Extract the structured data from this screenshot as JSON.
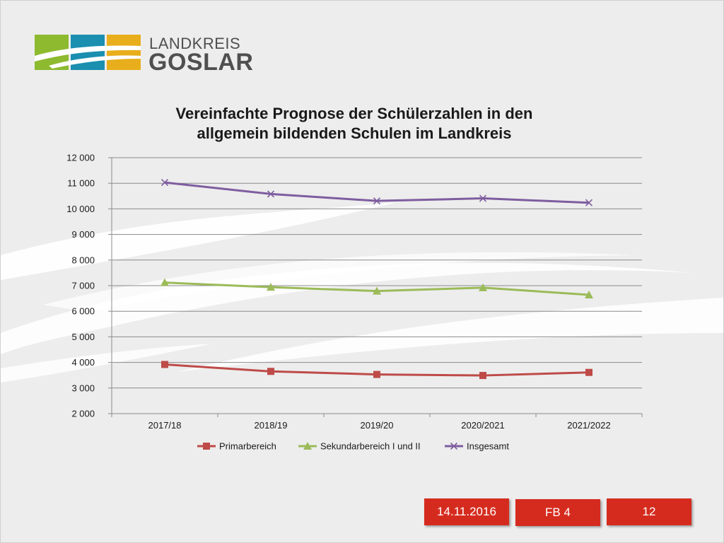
{
  "logo": {
    "line1": "LANDKREIS",
    "line2": "GOSLAR",
    "tile_colors": [
      "#8dba2f",
      "#1a8fb0",
      "#e8ae1c"
    ]
  },
  "chart_data": {
    "type": "line",
    "title": "Vereinfachte Prognose der Schülerzahlen in den allgemein bildenden Schulen im Landkreis",
    "title_lines": [
      "Vereinfachte Prognose der Schülerzahlen in den",
      "allgemein bildenden Schulen im Landkreis"
    ],
    "categories": [
      "2017/18",
      "2018/19",
      "2019/20",
      "2020/2021",
      "2021/2022"
    ],
    "ylim": [
      2000,
      12000
    ],
    "yticks": [
      2000,
      3000,
      4000,
      5000,
      6000,
      7000,
      8000,
      9000,
      10000,
      11000,
      12000
    ],
    "ytick_labels": [
      "2 000",
      "3 000",
      "4 000",
      "5 000",
      "6 000",
      "7 000",
      "8 000",
      "9 000",
      "10 000",
      "11 000",
      "12 000"
    ],
    "grid": true,
    "legend_position": "bottom",
    "series": [
      {
        "name": "Primarbereich",
        "marker": "square",
        "color": "#be4b48",
        "values": [
          3920,
          3650,
          3530,
          3490,
          3610
        ]
      },
      {
        "name": "Sekundarbereich I und II",
        "marker": "triangle",
        "color": "#9bbb59",
        "values": [
          7120,
          6940,
          6790,
          6920,
          6640
        ]
      },
      {
        "name": "Insgesamt",
        "marker": "x",
        "color": "#7e5d9f",
        "values": [
          11030,
          10580,
          10310,
          10410,
          10240
        ]
      }
    ]
  },
  "footer": {
    "date": "14.11.2016",
    "department": "FB 4",
    "page": "12"
  }
}
